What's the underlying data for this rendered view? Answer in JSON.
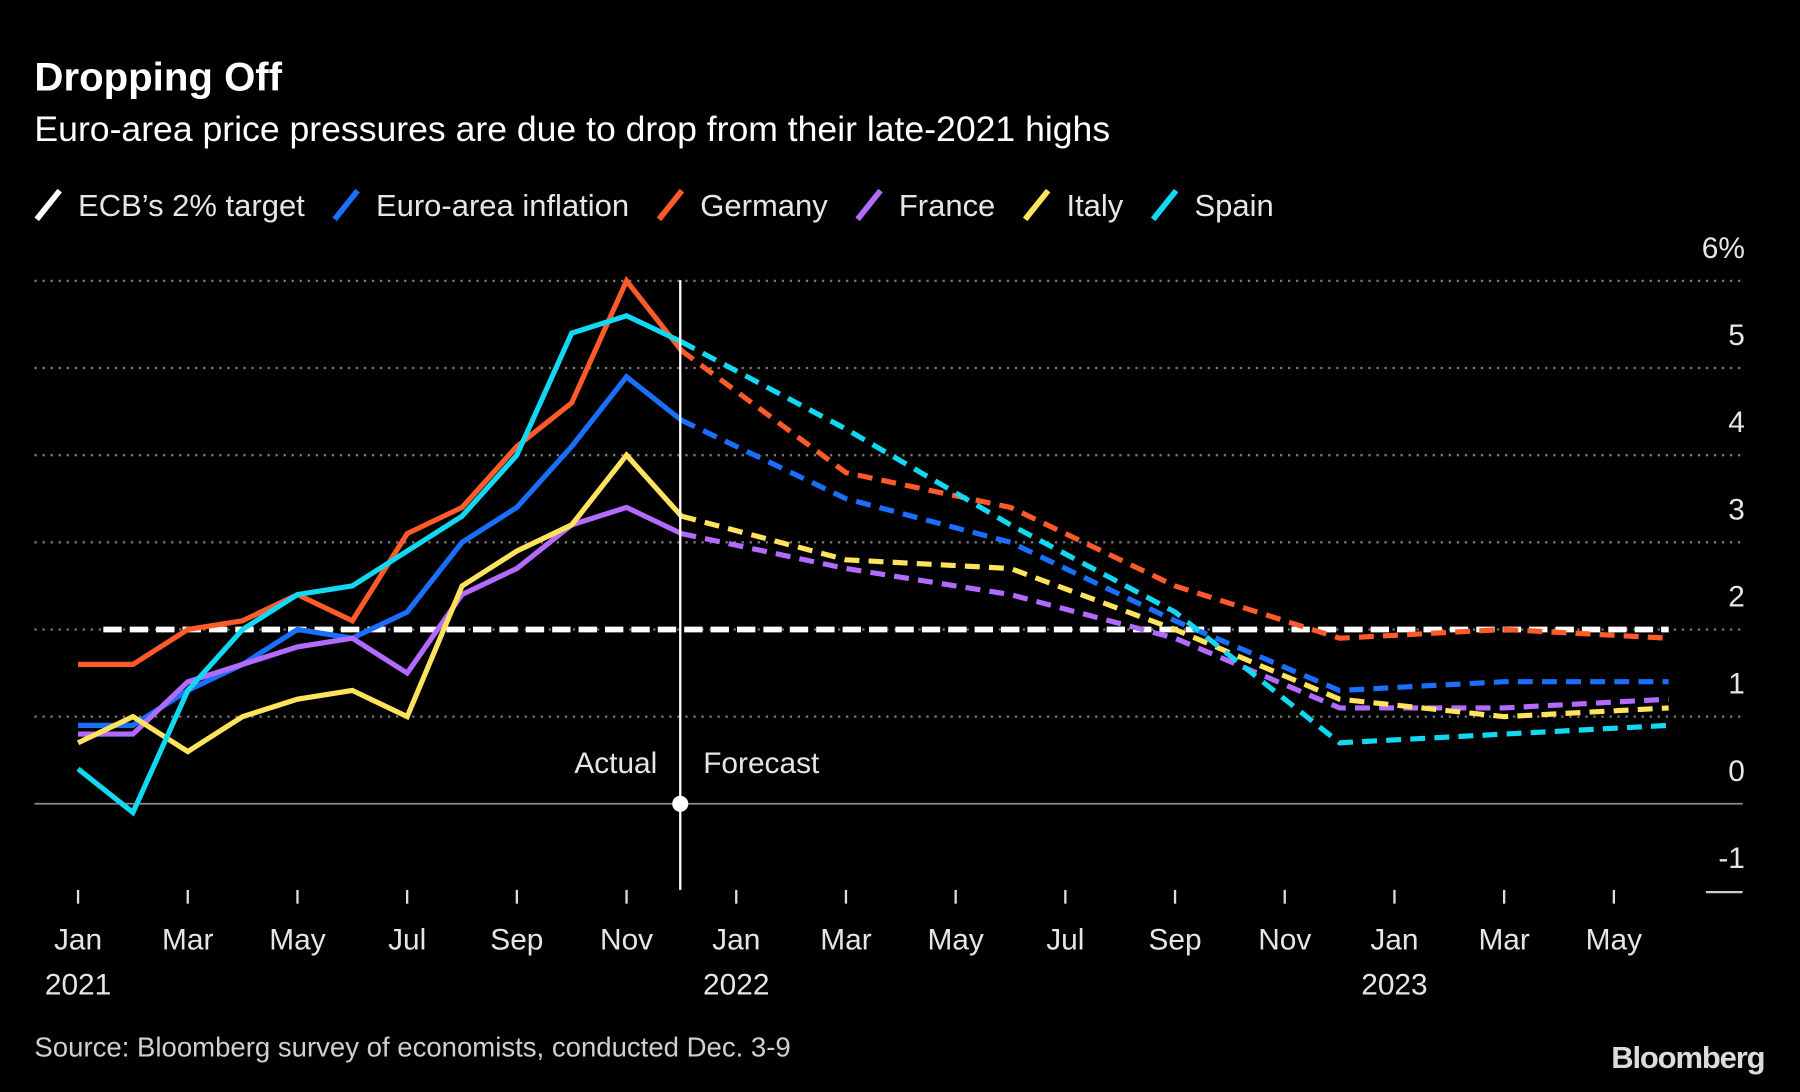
{
  "header": {
    "title": "Dropping Off",
    "subtitle": "Euro-area price pressures are due to drop from their late-2021 highs"
  },
  "footer": {
    "source": "Source: Bloomberg survey of economists, conducted Dec. 3-9",
    "logo": "Bloomberg"
  },
  "chart_data": {
    "type": "line",
    "title": "Dropping Off",
    "subtitle": "Euro-area price pressures are due to drop from their late-2021 highs",
    "ylim": [
      -1,
      6
    ],
    "y_ticks": [
      "6%",
      "5",
      "4",
      "3",
      "2",
      "1",
      "0",
      "-1"
    ],
    "y_tick_values": [
      6,
      5,
      4,
      3,
      2,
      1,
      0,
      -1
    ],
    "x_ticks": [
      {
        "month": "2021-01",
        "label": "Jan",
        "year": "2021"
      },
      {
        "month": "2021-03",
        "label": "Mar"
      },
      {
        "month": "2021-05",
        "label": "May"
      },
      {
        "month": "2021-07",
        "label": "Jul"
      },
      {
        "month": "2021-09",
        "label": "Sep"
      },
      {
        "month": "2021-11",
        "label": "Nov"
      },
      {
        "month": "2022-01",
        "label": "Jan",
        "year": "2022"
      },
      {
        "month": "2022-03",
        "label": "Mar"
      },
      {
        "month": "2022-05",
        "label": "May"
      },
      {
        "month": "2022-07",
        "label": "Jul"
      },
      {
        "month": "2022-09",
        "label": "Sep"
      },
      {
        "month": "2022-11",
        "label": "Nov"
      },
      {
        "month": "2023-01",
        "label": "Jan",
        "year": "2023"
      },
      {
        "month": "2023-03",
        "label": "Mar"
      },
      {
        "month": "2023-05",
        "label": "May"
      }
    ],
    "grid": "horizontal dotted",
    "legend_position": "top-left",
    "divider": {
      "month": "2021-12",
      "left_label": "Actual",
      "right_label": "Forecast"
    },
    "target": {
      "name": "ECB’s 2% target",
      "value": 2,
      "color": "#ffffff",
      "from": "2021-01",
      "to": "2023-06"
    },
    "actual_months": [
      "2021-01",
      "2021-02",
      "2021-03",
      "2021-04",
      "2021-05",
      "2021-06",
      "2021-07",
      "2021-08",
      "2021-09",
      "2021-10",
      "2021-11",
      "2021-12"
    ],
    "forecast_months": [
      "2021-12",
      "2022-03",
      "2022-06",
      "2022-09",
      "2022-12",
      "2023-03",
      "2023-06"
    ],
    "series": [
      {
        "name": "Euro-area inflation",
        "color": "#1a6fff",
        "actual": [
          0.9,
          0.9,
          1.3,
          1.6,
          2.0,
          1.9,
          2.2,
          3.0,
          3.4,
          4.1,
          4.9,
          4.4
        ],
        "forecast": [
          4.4,
          3.5,
          3.0,
          2.1,
          1.3,
          1.4,
          1.4
        ]
      },
      {
        "name": "Germany",
        "color": "#ff5a2a",
        "actual": [
          1.6,
          1.6,
          2.0,
          2.1,
          2.4,
          2.1,
          3.1,
          3.4,
          4.1,
          4.6,
          6.0,
          5.2
        ],
        "forecast": [
          5.2,
          3.8,
          3.4,
          2.5,
          1.9,
          2.0,
          1.9
        ]
      },
      {
        "name": "France",
        "color": "#b36bff",
        "actual": [
          0.8,
          0.8,
          1.4,
          1.6,
          1.8,
          1.9,
          1.5,
          2.4,
          2.7,
          3.2,
          3.4,
          3.1
        ],
        "forecast": [
          3.1,
          2.7,
          2.4,
          1.9,
          1.1,
          1.1,
          1.2
        ]
      },
      {
        "name": "Italy",
        "color": "#ffe35c",
        "actual": [
          0.7,
          1.0,
          0.6,
          1.0,
          1.2,
          1.3,
          1.0,
          2.5,
          2.9,
          3.2,
          4.0,
          3.3
        ],
        "forecast": [
          3.3,
          2.8,
          2.7,
          2.0,
          1.2,
          1.0,
          1.1
        ]
      },
      {
        "name": "Spain",
        "color": "#12d8f2",
        "actual": [
          0.4,
          -0.1,
          1.3,
          2.0,
          2.4,
          2.5,
          2.9,
          3.3,
          4.0,
          5.4,
          5.6,
          5.3
        ],
        "forecast": [
          5.3,
          4.3,
          3.2,
          2.2,
          0.7,
          0.8,
          0.9
        ]
      }
    ]
  }
}
